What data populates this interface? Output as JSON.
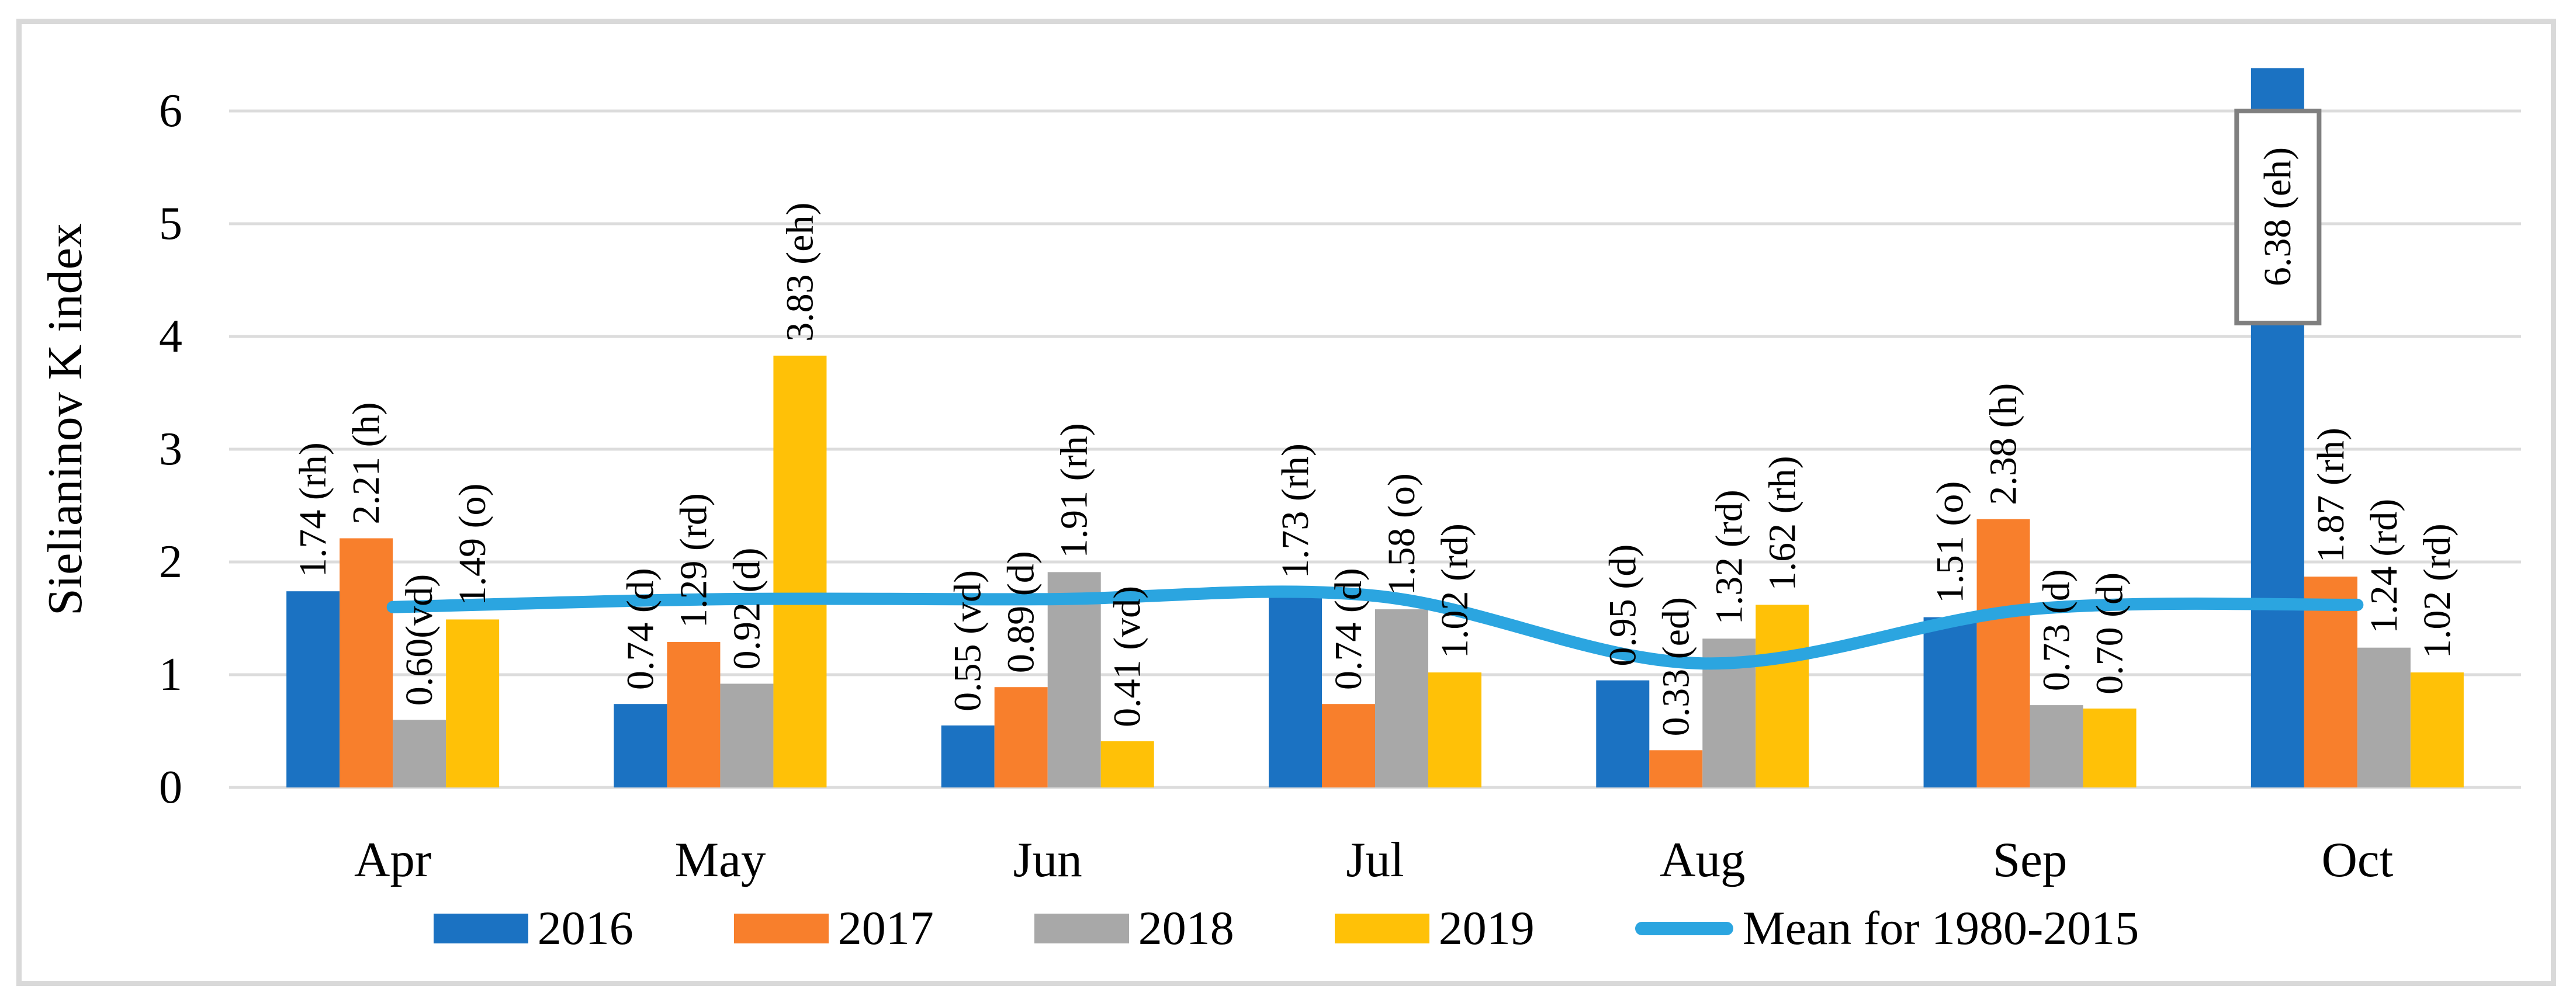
{
  "figure": {
    "background": "#FFFFFF",
    "border_color": "#D9D9D9"
  },
  "chart_data": {
    "type": "bar",
    "title": "",
    "xlabel": "",
    "ylabel": "Sielianinov K index",
    "ylim": [
      0,
      6.5
    ],
    "yticks": [
      0,
      1,
      2,
      3,
      4,
      5,
      6
    ],
    "grid": true,
    "grid_color": "#DCDCDC",
    "legend_position": "bottom",
    "categories": [
      "Apr",
      "May",
      "Jun",
      "Jul",
      "Aug",
      "Sep",
      "Oct"
    ],
    "series": [
      {
        "name": "2016",
        "type": "bar",
        "color": "#1B72C2",
        "values": [
          1.74,
          0.74,
          0.55,
          1.73,
          0.95,
          1.51,
          6.38
        ],
        "data_labels": [
          "1.74 (rh)",
          "0.74 (d)",
          "0.55 (vd)",
          "1.73 (rh)",
          "0.95 (d)",
          "1.51 (o)",
          "6.38 (eh)"
        ]
      },
      {
        "name": "2017",
        "type": "bar",
        "color": "#F87F2C",
        "values": [
          2.21,
          1.29,
          0.89,
          0.74,
          0.33,
          2.38,
          1.87
        ],
        "data_labels": [
          "2.21 (h)",
          "1.29 (rd)",
          "0.89 (d)",
          "0.74 (d)",
          "0.33 (ed)",
          "2.38 (h)",
          "1.87 (rh)"
        ]
      },
      {
        "name": "2018",
        "type": "bar",
        "color": "#A8A8A8",
        "values": [
          0.6,
          0.92,
          1.91,
          1.58,
          1.32,
          0.73,
          1.24
        ],
        "data_labels": [
          "0.60(vd)",
          "0.92 (d)",
          "1.91 (rh)",
          "1.58 (o)",
          "1.32 (rd)",
          "0.73 (d)",
          "1.24 (rd)"
        ]
      },
      {
        "name": "2019",
        "type": "bar",
        "color": "#FFC107",
        "values": [
          1.49,
          3.83,
          0.41,
          1.02,
          1.62,
          0.7,
          1.02
        ],
        "data_labels": [
          "1.49 (o)",
          "3.83 (eh)",
          "0.41 (vd)",
          "1.02 (rd)",
          "1.62 (rh)",
          "0.70 (d)",
          "1.02 (rd)"
        ]
      },
      {
        "name": "Mean for 1980-2015",
        "type": "line",
        "smooth": true,
        "color": "#2BA5E0",
        "values": [
          1.6,
          1.67,
          1.67,
          1.7,
          1.1,
          1.58,
          1.62
        ]
      }
    ],
    "highlight_label": {
      "series": "2016",
      "category": "Oct",
      "text": "6.38 (eh)",
      "box_fill": "#FFFFFF",
      "box_border_color": "#7F7F7F"
    }
  }
}
